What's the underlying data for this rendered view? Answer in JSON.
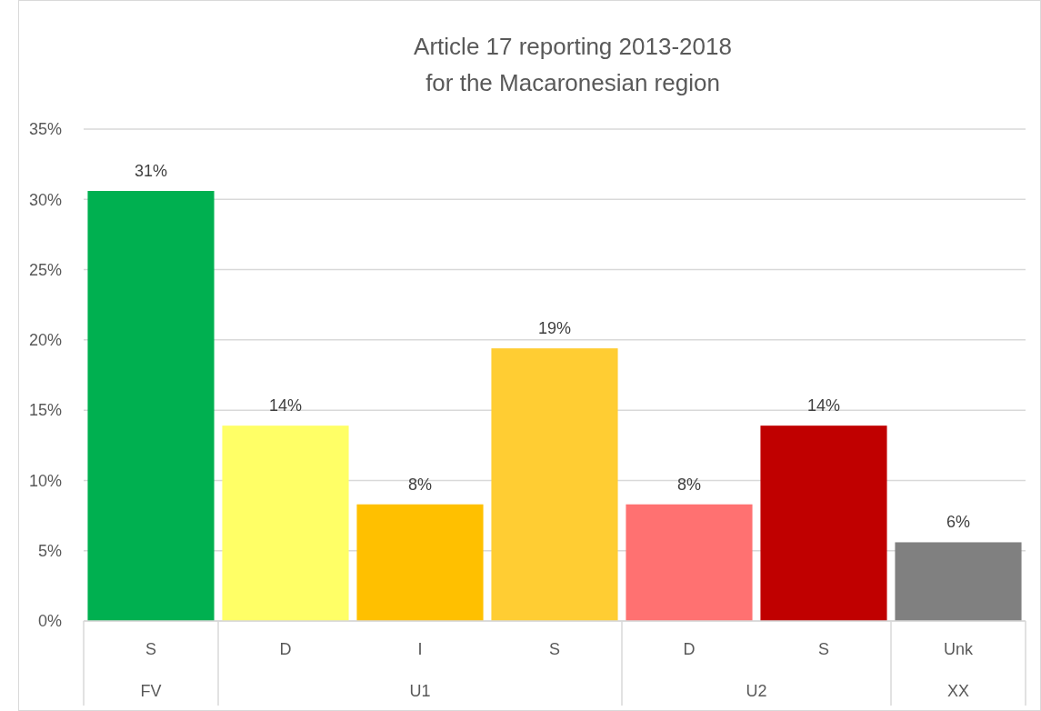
{
  "chart_data": {
    "type": "bar",
    "title": "Article 17 reporting 2013-2018\nfor the Macaronesian region",
    "categories": [
      "S",
      "D",
      "I",
      "S",
      "D",
      "S",
      "Unk"
    ],
    "values": [
      30.6,
      13.9,
      8.3,
      19.4,
      8.3,
      13.9,
      5.6
    ],
    "colors": [
      "#00b050",
      "#ffff66",
      "#ffc000",
      "#ffcd33",
      "#ff7171",
      "#c00000",
      "#808080"
    ],
    "value_labels": [
      "31%",
      "14%",
      "8%",
      "19%",
      "8%",
      "14%",
      "6%"
    ],
    "ylim": [
      0,
      35
    ],
    "yticks": [
      {
        "value": 0,
        "label": "0%"
      },
      {
        "value": 5,
        "label": "5%"
      },
      {
        "value": 10,
        "label": "10%"
      },
      {
        "value": 15,
        "label": "15%"
      },
      {
        "value": 20,
        "label": "20%"
      },
      {
        "value": 25,
        "label": "25%"
      },
      {
        "value": 30,
        "label": "30%"
      },
      {
        "value": 35,
        "label": "35%"
      }
    ],
    "grid": "y",
    "annotations": [
      "FV",
      "U1",
      "U2",
      "XX"
    ]
  }
}
